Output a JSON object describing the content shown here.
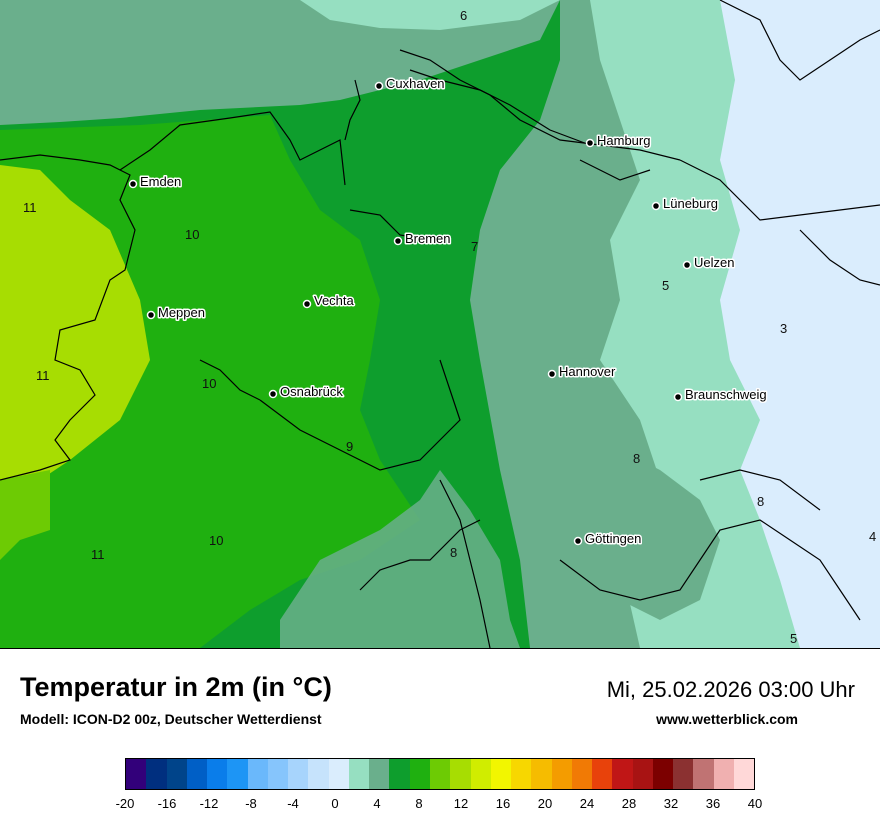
{
  "map": {
    "cities": [
      {
        "name": "Cuxhaven"
      },
      {
        "name": "Hamburg"
      },
      {
        "name": "Emden"
      },
      {
        "name": "Lüneburg"
      },
      {
        "name": "Bremen"
      },
      {
        "name": "Uelzen"
      },
      {
        "name": "Meppen"
      },
      {
        "name": "Vechta"
      },
      {
        "name": "Hannover"
      },
      {
        "name": "Osnabrück"
      },
      {
        "name": "Braunschweig"
      },
      {
        "name": "Göttingen"
      }
    ],
    "isoline_labels": [
      "6",
      "11",
      "10",
      "7",
      "5",
      "3",
      "11",
      "10",
      "9",
      "8",
      "8",
      "10",
      "11",
      "8",
      "4",
      "5"
    ]
  },
  "header": {
    "title": "Temperatur in 2m (in °C)",
    "model": "Modell: ICON-D2 00z, Deutscher Wetterdienst",
    "datetime": "Mi, 25.02.2026 03:00 Uhr",
    "website": "www.wetterblick.com"
  },
  "legend": {
    "colors": [
      "#32007a",
      "#002f7f",
      "#00448a",
      "#005fc6",
      "#0a7dea",
      "#1d95f5",
      "#6ab8fb",
      "#86c5fc",
      "#a7d4fc",
      "#c6e3fc",
      "#daedfd",
      "#96dfc1",
      "#6aaf8c",
      "#0e9e2d",
      "#1fb010",
      "#6dcb04",
      "#a7dd02",
      "#d0ed00",
      "#f2f600",
      "#f7d700",
      "#f6bc00",
      "#f49c00",
      "#f17a05",
      "#e8420b",
      "#c01616",
      "#a81313",
      "#7c0000",
      "#8b3131",
      "#c07373",
      "#f0b0b0",
      "#ffd8d8"
    ],
    "ticks": [
      "-20",
      "-16",
      "-12",
      "-8",
      "-4",
      "0",
      "4",
      "8",
      "12",
      "16",
      "20",
      "24",
      "28",
      "32",
      "36",
      "40"
    ]
  }
}
